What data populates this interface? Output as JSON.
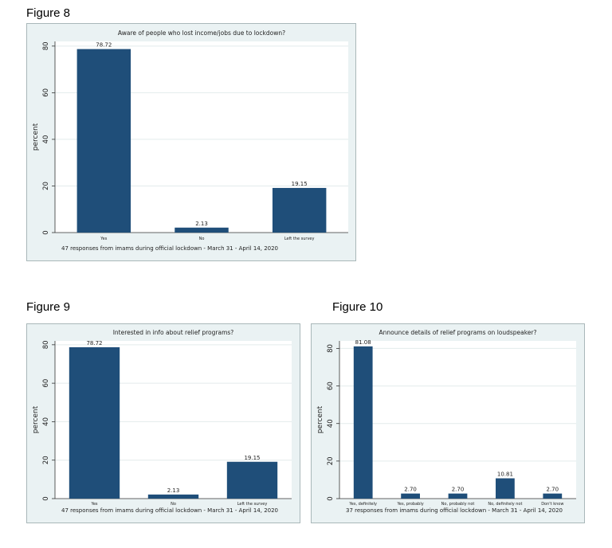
{
  "figures": [
    {
      "label": "Figure 8"
    },
    {
      "label": "Figure 9"
    },
    {
      "label": "Figure 10"
    }
  ],
  "chart_data": [
    {
      "type": "bar",
      "title": "Aware of people who lost income/jobs due to lockdown?",
      "ylabel": "percent",
      "xlabel": "",
      "categories": [
        "Yes",
        "No",
        "Left the survey"
      ],
      "values": [
        78.72,
        2.13,
        19.15
      ],
      "value_labels": [
        "78.72",
        "2.13",
        "19.15"
      ],
      "ylim": [
        0,
        80
      ],
      "yticks": [
        "0",
        "20",
        "40",
        "60",
        "80"
      ],
      "note": "47 responses from imams during official lockdown - March 31 - April 14, 2020",
      "grid": true,
      "bar_color": "#1f4e79"
    },
    {
      "type": "bar",
      "title": "Interested in info about relief programs?",
      "ylabel": "percent",
      "xlabel": "",
      "categories": [
        "Yes",
        "No",
        "Left the survey"
      ],
      "values": [
        78.72,
        2.13,
        19.15
      ],
      "value_labels": [
        "78.72",
        "2.13",
        "19.15"
      ],
      "ylim": [
        0,
        80
      ],
      "yticks": [
        "0",
        "20",
        "40",
        "60",
        "80"
      ],
      "note": "47 responses from imams during official lockdown - March 31 - April 14, 2020",
      "grid": true,
      "bar_color": "#1f4e79"
    },
    {
      "type": "bar",
      "title": "Announce details of relief programs on loudspeaker?",
      "ylabel": "percent",
      "xlabel": "",
      "categories": [
        "Yes, definitely",
        "Yes, probably",
        "No, probably not",
        "No, definitely not",
        "Don't know"
      ],
      "values": [
        81.08,
        2.7,
        2.7,
        10.81,
        2.7
      ],
      "value_labels": [
        "81.08",
        "2.70",
        "2.70",
        "10.81",
        "2.70"
      ],
      "ylim": [
        0,
        80
      ],
      "yticks": [
        "0",
        "20",
        "40",
        "60",
        "80"
      ],
      "note": "37 responses from imams during official lockdown - March 31 - April 14, 2020",
      "grid": true,
      "bar_color": "#1f4e79"
    }
  ]
}
